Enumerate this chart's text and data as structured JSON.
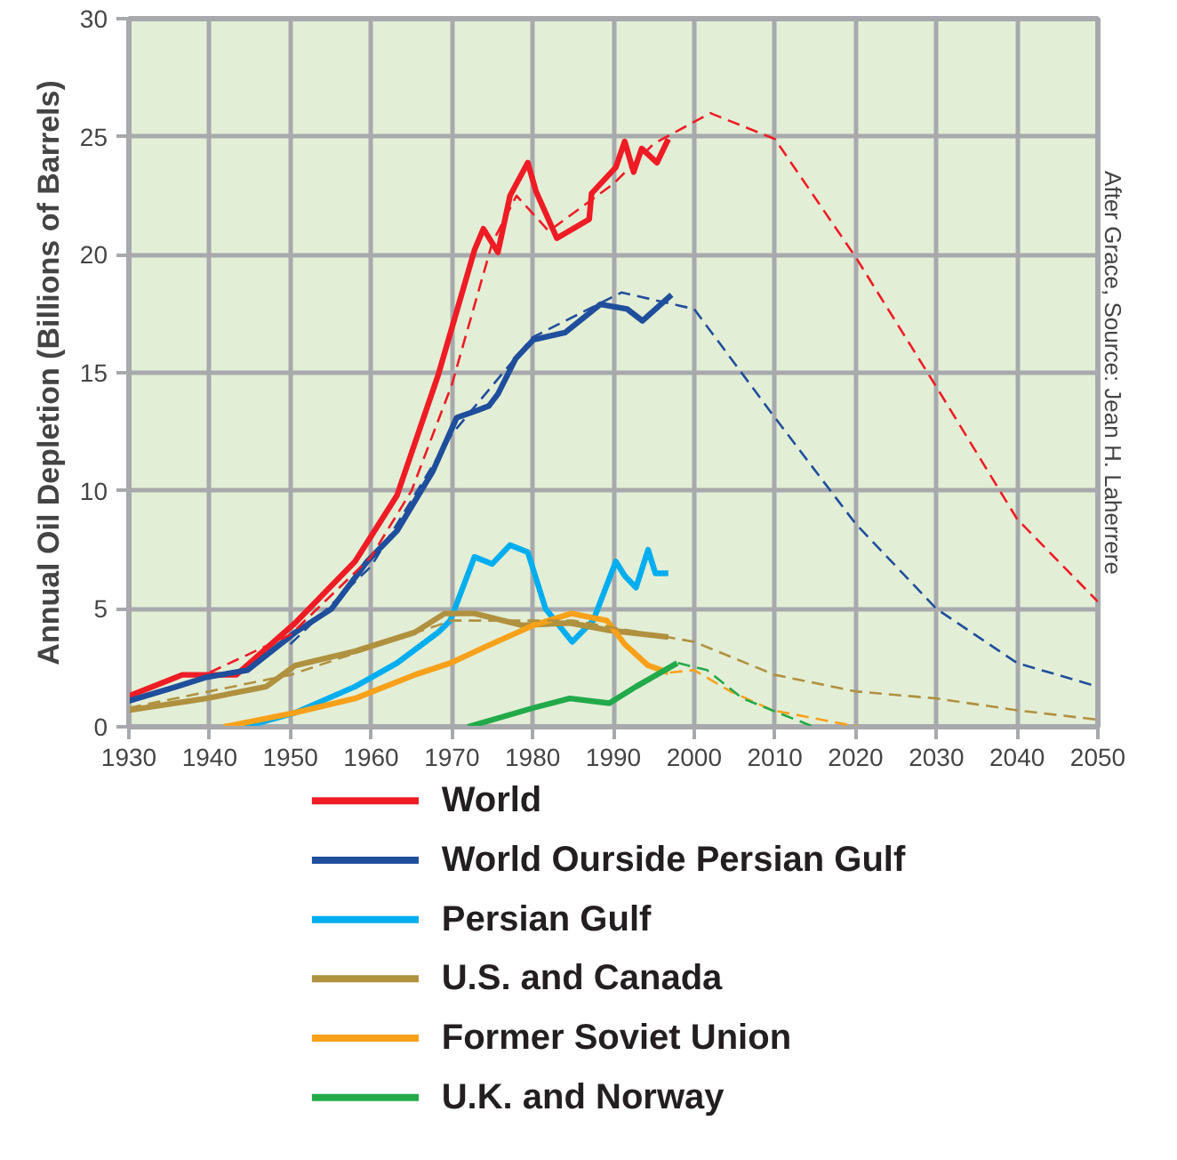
{
  "chart_data": {
    "type": "line",
    "ylabel": "Annual Oil Depletion (Billions of Barrels)",
    "annotations": [
      "After Grace, Source: Jean H. Laherrere"
    ],
    "xlim": [
      1930,
      2050
    ],
    "xticks": [
      1930,
      1940,
      1950,
      1960,
      1970,
      1980,
      1990,
      2000,
      2010,
      2020,
      2030,
      2040,
      2050
    ],
    "ylim": [
      0,
      30
    ],
    "yticks": [
      0,
      5,
      10,
      15,
      20,
      25,
      30
    ],
    "grid": true,
    "legend": "bottom",
    "marker": "none",
    "series": [
      {
        "name": "World",
        "color": "#ee1c25",
        "line_style": "solid",
        "x": [
          1930,
          1936.6,
          1943.3,
          1950.6,
          1958,
          1963.2,
          1968.3,
          1972.8,
          1973.9,
          1975.7,
          1977.2,
          1979.4,
          1980.4,
          1983,
          1987,
          1987.3,
          1990.3,
          1991.4,
          1992.5,
          1993.5,
          1995.4,
          1996.8
        ],
        "values": [
          1.3,
          2.2,
          2.2,
          4.4,
          7.0,
          9.8,
          14.9,
          20.2,
          21.1,
          20.1,
          22.5,
          23.9,
          22.7,
          20.7,
          21.5,
          22.6,
          23.7,
          24.8,
          23.5,
          24.5,
          23.9,
          24.9
        ]
      },
      {
        "name": "World Ourside Persian Gulf",
        "color": "#1f4e9c",
        "line_style": "solid",
        "x": [
          1930,
          1935.9,
          1939.6,
          1944.7,
          1950.6,
          1955.1,
          1959.5,
          1963.2,
          1967.6,
          1970.6,
          1973.1,
          1974.6,
          1975.7,
          1977.9,
          1980.1,
          1984,
          1988.4,
          1991.7,
          1993.6,
          1997.2
        ],
        "values": [
          1.1,
          1.7,
          2.1,
          2.4,
          4.0,
          5.0,
          7.0,
          8.3,
          10.8,
          13.1,
          13.4,
          13.6,
          14.1,
          15.6,
          16.4,
          16.7,
          17.9,
          17.7,
          17.2,
          18.3
        ]
      },
      {
        "name": "Persian Gulf",
        "color": "#00aeef",
        "line_style": "solid",
        "x": [
          1944.4,
          1950.6,
          1958,
          1963.2,
          1968.3,
          1969.8,
          1972.8,
          1975,
          1977.2,
          1979.4,
          1981.6,
          1984.9,
          1987.5,
          1990.3,
          1991.4,
          1992.8,
          1994.3,
          1995.2,
          1996.8
        ],
        "values": [
          0,
          0.6,
          1.7,
          2.7,
          4.0,
          4.5,
          7.2,
          6.9,
          7.7,
          7.4,
          5.0,
          3.6,
          4.5,
          7.0,
          6.4,
          5.9,
          7.5,
          6.5,
          6.5
        ]
      },
      {
        "name": "U.S. and Canada",
        "color": "#b0913f",
        "line_style": "solid",
        "x": [
          1930,
          1939.6,
          1947,
          1950.6,
          1958,
          1965.4,
          1969.1,
          1972.8,
          1978.7,
          1984.6,
          1989.2,
          1996.8
        ],
        "values": [
          0.7,
          1.2,
          1.7,
          2.6,
          3.2,
          4.0,
          4.8,
          4.8,
          4.3,
          4.4,
          4.1,
          3.8
        ]
      },
      {
        "name": "Former Soviet Union",
        "color": "#f7a11a",
        "line_style": "solid",
        "x": [
          1941.8,
          1950.6,
          1958,
          1965.4,
          1969.8,
          1974.2,
          1980.1,
          1984.8,
          1989.2,
          1991.4,
          1994.3,
          1996.8
        ],
        "values": [
          0,
          0.6,
          1.2,
          2.2,
          2.7,
          3.4,
          4.3,
          4.8,
          4.5,
          3.5,
          2.6,
          2.3
        ]
      },
      {
        "name": "U.K. and Norway",
        "color": "#22aa4a",
        "line_style": "solid",
        "x": [
          1972,
          1980.1,
          1984.6,
          1989.5,
          1992.8,
          1997.9
        ],
        "values": [
          0,
          0.8,
          1.2,
          1.0,
          1.7,
          2.7
        ]
      },
      {
        "color": "#ee1c25",
        "line_style": "dashed",
        "x": [
          1940,
          1950,
          1960,
          1965,
          1970,
          1975,
          1978,
          1982,
          1990,
          1995,
          2002,
          2010,
          2020,
          2030,
          2040,
          2050
        ],
        "values": [
          2.3,
          3.9,
          7.2,
          10,
          14.5,
          20.5,
          22.5,
          21.0,
          23,
          24.7,
          26.0,
          24.9,
          19.9,
          14.4,
          8.8,
          5.3
        ]
      },
      {
        "color": "#1f4e9c",
        "line_style": "dashed",
        "x": [
          1950,
          1960,
          1970,
          1980,
          1991,
          2000,
          2010,
          2020,
          2030,
          2040,
          2050
        ],
        "values": [
          3.5,
          6.8,
          12.4,
          16.5,
          18.4,
          17.7,
          13.1,
          8.6,
          5.0,
          2.7,
          1.7
        ]
      },
      {
        "color": "#b0913f",
        "line_style": "dashed",
        "x": [
          1930,
          1950,
          1970,
          1985,
          2000,
          2010,
          2020,
          2030,
          2040,
          2050
        ],
        "values": [
          0.8,
          2.2,
          4.5,
          4.5,
          3.6,
          2.2,
          1.5,
          1.2,
          0.7,
          0.3
        ]
      },
      {
        "color": "#f7a11a",
        "line_style": "dashed",
        "x": [
          1997,
          2000,
          2004.5,
          2009.7,
          2020.3
        ],
        "values": [
          2.3,
          2.4,
          1.5,
          0.7,
          0
        ]
      },
      {
        "color": "#22aa4a",
        "line_style": "dashed",
        "x": [
          1998,
          2001.6,
          2006,
          2011.1,
          2014.8
        ],
        "values": [
          2.7,
          2.4,
          1.2,
          0.5,
          0
        ]
      }
    ]
  }
}
